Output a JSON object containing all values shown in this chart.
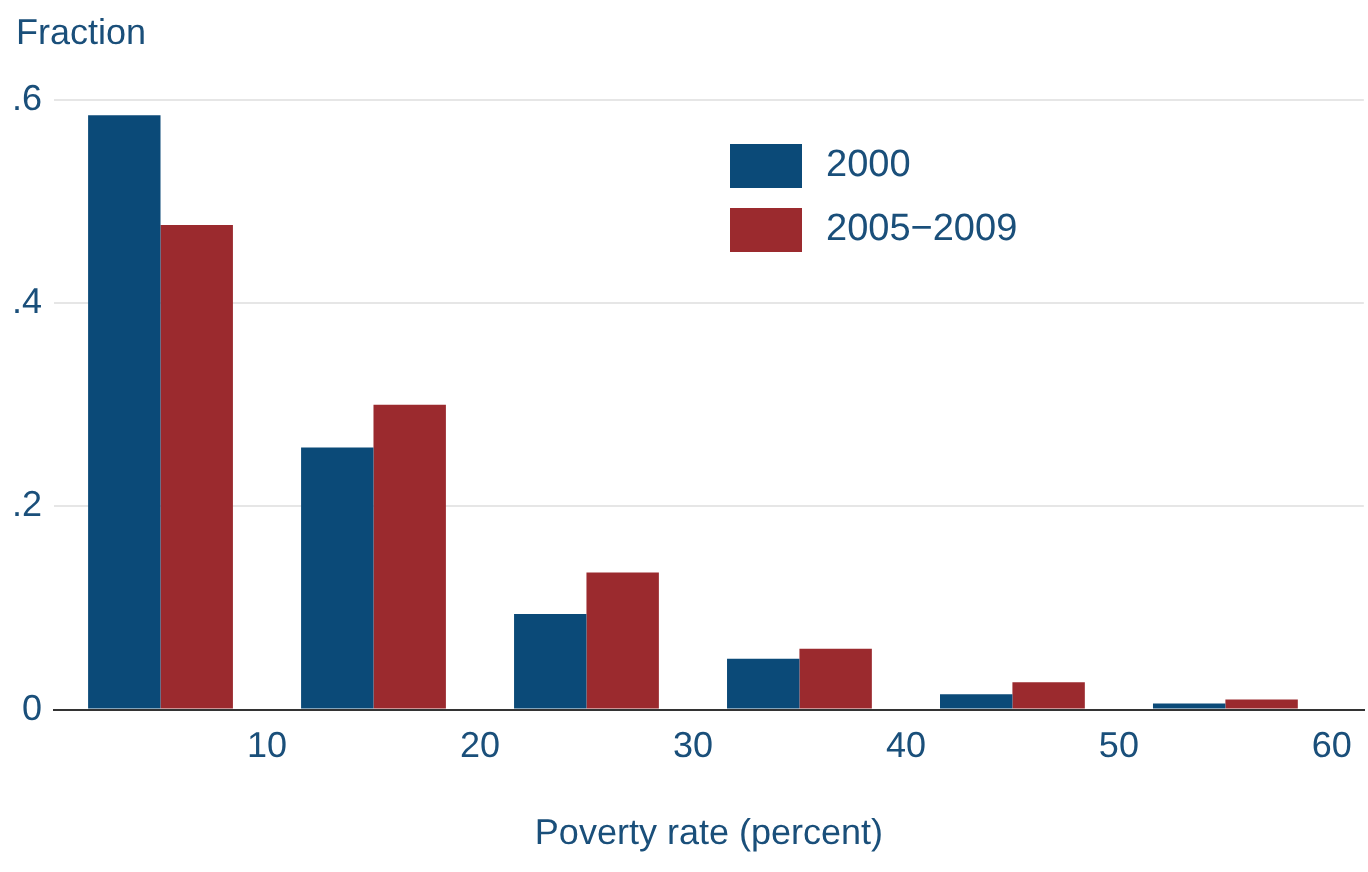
{
  "chart_data": {
    "type": "bar",
    "xlabel": "Poverty rate (percent)",
    "ylabel": "Fraction",
    "x": [
      5,
      15,
      25,
      35,
      45,
      55
    ],
    "xlim": [
      0,
      61.5
    ],
    "xticks": [
      10,
      20,
      30,
      40,
      50,
      60
    ],
    "ylim": [
      0,
      0.6
    ],
    "yticks": [
      {
        "value": 0,
        "label": "0"
      },
      {
        "value": 0.2,
        "label": ".2"
      },
      {
        "value": 0.4,
        "label": ".4"
      },
      {
        "value": 0.6,
        "label": ".6"
      }
    ],
    "series": [
      {
        "name": "2000",
        "color": "#0b4a78",
        "values": [
          0.585,
          0.258,
          0.094,
          0.05,
          0.015,
          0.006
        ]
      },
      {
        "name": "2005−2009",
        "color": "#9b2a2e",
        "values": [
          0.477,
          0.3,
          0.135,
          0.06,
          0.027,
          0.01
        ]
      }
    ],
    "grid": "y",
    "legend": "top right"
  }
}
